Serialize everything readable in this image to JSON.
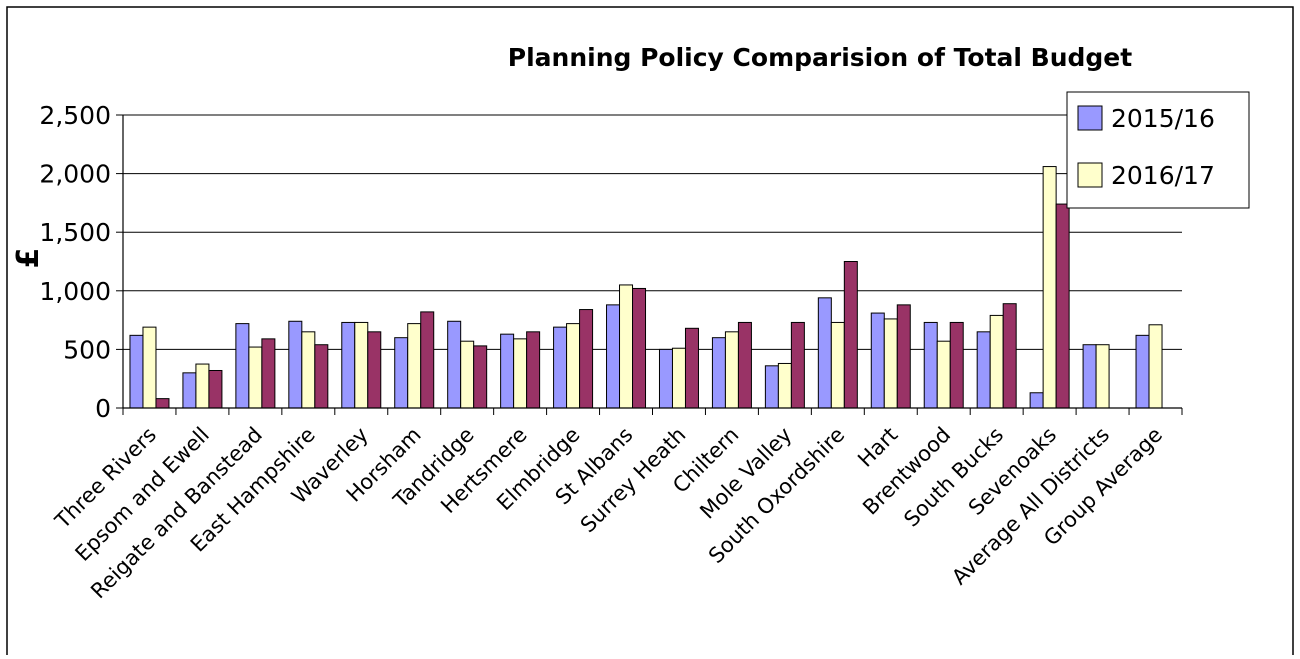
{
  "chart_data": {
    "type": "bar",
    "title": "Planning Policy Comparision of Total Budget",
    "ylabel": "£",
    "xlabel": "",
    "ylim": [
      0,
      2500
    ],
    "yticks": [
      0,
      500,
      1000,
      1500,
      2000,
      2500
    ],
    "ytick_labels": [
      "0",
      "500",
      "1,000",
      "1,500",
      "2,000",
      "2,500"
    ],
    "grid": true,
    "legend_position": "top-right",
    "categories": [
      "Three Rivers",
      "Epsom and Ewell",
      "Reigate and Banstead",
      "East Hampshire",
      "Waverley",
      "Horsham",
      "Tandridge",
      "Hertsmere",
      "Elmbridge",
      "St Albans",
      "Surrey Heath",
      "Chiltern",
      "Mole Valley",
      "South Oxordshire",
      "Hart",
      "Brentwood",
      "South Bucks",
      "Sevenoaks",
      "Average All Districts",
      "Group Average"
    ],
    "series": [
      {
        "name": "2015/16",
        "color": "#9999ff",
        "values": [
          620,
          300,
          720,
          740,
          730,
          600,
          740,
          630,
          690,
          880,
          500,
          600,
          360,
          940,
          810,
          730,
          650,
          130,
          540,
          620
        ]
      },
      {
        "name": "2016/17",
        "color": "#ffffcc",
        "values": [
          690,
          375,
          520,
          650,
          730,
          720,
          570,
          590,
          720,
          1050,
          510,
          650,
          380,
          730,
          760,
          570,
          790,
          2060,
          540,
          710
        ]
      },
      {
        "color": "#993366",
        "values": [
          80,
          320,
          590,
          540,
          650,
          820,
          530,
          650,
          840,
          1020,
          680,
          730,
          730,
          1250,
          880,
          730,
          890,
          1740,
          null,
          null
        ]
      }
    ]
  }
}
